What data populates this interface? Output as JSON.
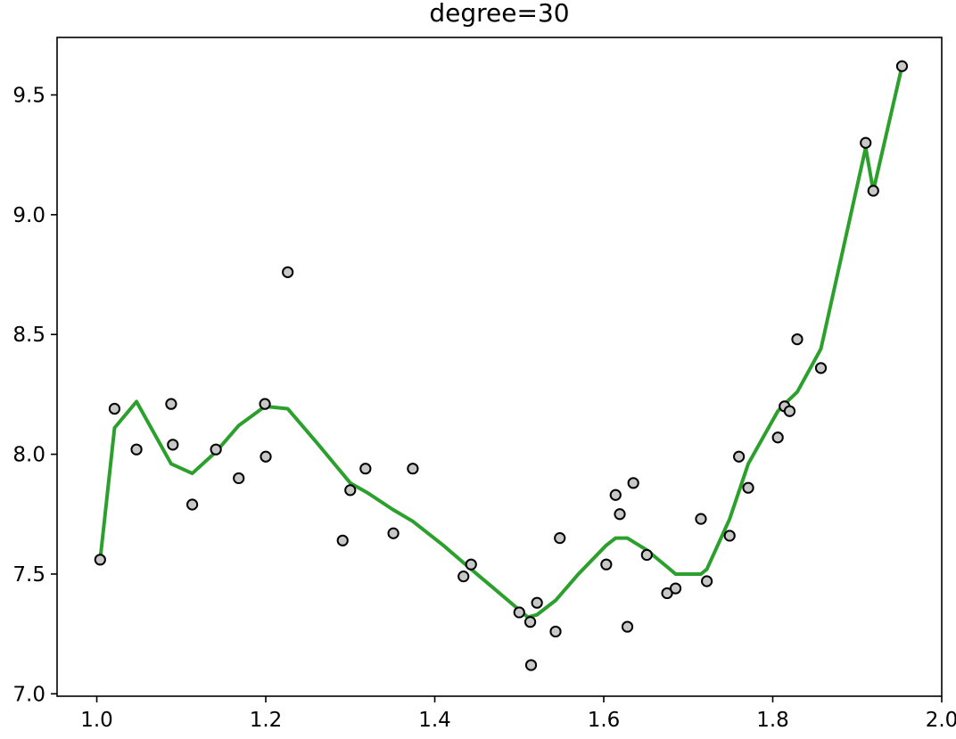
{
  "chart_data": {
    "type": "scatter",
    "title": "degree=30",
    "xlabel": "",
    "ylabel": "",
    "xlim": [
      0.953,
      2.0
    ],
    "ylim": [
      6.99,
      9.74
    ],
    "grid": false,
    "x_ticks": [
      1.0,
      1.2,
      1.4,
      1.6,
      1.8,
      2.0
    ],
    "x_tick_labels": [
      "1.0",
      "1.2",
      "1.4",
      "1.6",
      "1.8",
      "2.0"
    ],
    "y_ticks": [
      7.0,
      7.5,
      8.0,
      8.5,
      9.0,
      9.5
    ],
    "y_tick_labels": [
      "7.0",
      "7.5",
      "8.0",
      "8.5",
      "9.0",
      "9.5"
    ],
    "series": [
      {
        "kind": "scatter",
        "color": "#c8c8c8",
        "edge_color": "#000000",
        "points": [
          [
            1.004,
            7.56
          ],
          [
            1.021,
            8.19
          ],
          [
            1.047,
            8.02
          ],
          [
            1.088,
            8.21
          ],
          [
            1.09,
            8.04
          ],
          [
            1.113,
            7.79
          ],
          [
            1.141,
            8.02
          ],
          [
            1.168,
            7.9
          ],
          [
            1.199,
            8.21
          ],
          [
            1.2,
            7.99
          ],
          [
            1.226,
            8.76
          ],
          [
            1.291,
            7.64
          ],
          [
            1.3,
            7.85
          ],
          [
            1.318,
            7.94
          ],
          [
            1.351,
            7.67
          ],
          [
            1.374,
            7.94
          ],
          [
            1.434,
            7.49
          ],
          [
            1.443,
            7.54
          ],
          [
            1.5,
            7.34
          ],
          [
            1.513,
            7.3
          ],
          [
            1.514,
            7.12
          ],
          [
            1.521,
            7.38
          ],
          [
            1.543,
            7.26
          ],
          [
            1.548,
            7.65
          ],
          [
            1.603,
            7.54
          ],
          [
            1.614,
            7.83
          ],
          [
            1.619,
            7.75
          ],
          [
            1.628,
            7.28
          ],
          [
            1.635,
            7.88
          ],
          [
            1.651,
            7.58
          ],
          [
            1.675,
            7.42
          ],
          [
            1.685,
            7.44
          ],
          [
            1.715,
            7.73
          ],
          [
            1.722,
            7.47
          ],
          [
            1.749,
            7.66
          ],
          [
            1.76,
            7.99
          ],
          [
            1.771,
            7.86
          ],
          [
            1.806,
            8.07
          ],
          [
            1.814,
            8.2
          ],
          [
            1.82,
            8.18
          ],
          [
            1.829,
            8.48
          ],
          [
            1.857,
            8.36
          ],
          [
            1.91,
            9.3
          ],
          [
            1.919,
            9.1
          ],
          [
            1.953,
            9.62
          ]
        ]
      },
      {
        "kind": "line",
        "color": "#2ca02c",
        "points": [
          [
            1.004,
            7.56
          ],
          [
            1.021,
            8.11
          ],
          [
            1.047,
            8.22
          ],
          [
            1.088,
            7.96
          ],
          [
            1.113,
            7.92
          ],
          [
            1.141,
            8.01
          ],
          [
            1.168,
            8.12
          ],
          [
            1.199,
            8.2
          ],
          [
            1.226,
            8.19
          ],
          [
            1.26,
            8.05
          ],
          [
            1.3,
            7.88
          ],
          [
            1.32,
            7.84
          ],
          [
            1.35,
            7.77
          ],
          [
            1.374,
            7.72
          ],
          [
            1.41,
            7.62
          ],
          [
            1.443,
            7.52
          ],
          [
            1.47,
            7.44
          ],
          [
            1.5,
            7.35
          ],
          [
            1.51,
            7.32
          ],
          [
            1.521,
            7.33
          ],
          [
            1.543,
            7.39
          ],
          [
            1.57,
            7.5
          ],
          [
            1.603,
            7.62
          ],
          [
            1.614,
            7.65
          ],
          [
            1.628,
            7.65
          ],
          [
            1.651,
            7.6
          ],
          [
            1.675,
            7.53
          ],
          [
            1.685,
            7.5
          ],
          [
            1.715,
            7.5
          ],
          [
            1.722,
            7.52
          ],
          [
            1.749,
            7.73
          ],
          [
            1.771,
            7.96
          ],
          [
            1.806,
            8.18
          ],
          [
            1.814,
            8.21
          ],
          [
            1.829,
            8.26
          ],
          [
            1.857,
            8.44
          ],
          [
            1.91,
            9.28
          ],
          [
            1.919,
            9.1
          ],
          [
            1.953,
            9.62
          ]
        ]
      }
    ]
  }
}
